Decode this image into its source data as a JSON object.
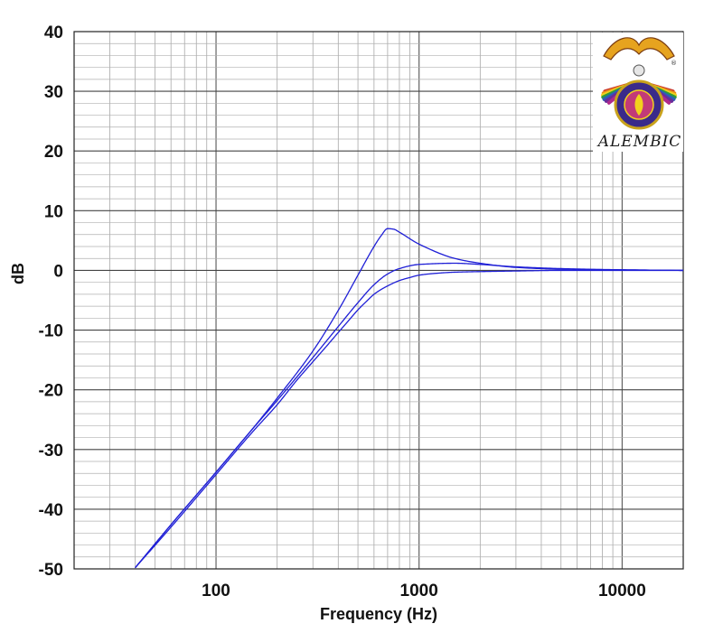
{
  "chart_data": {
    "type": "line",
    "xlabel": "Frequency (Hz)",
    "ylabel": "dB",
    "xscale": "log",
    "xlim": [
      20,
      20000
    ],
    "ylim": [
      -50,
      40
    ],
    "grid": true,
    "line_color": "#1f1fd6",
    "x_ticks": [
      {
        "value": 100,
        "label": "100"
      },
      {
        "value": 1000,
        "label": "1000"
      },
      {
        "value": 10000,
        "label": "10000"
      }
    ],
    "y_ticks": [
      {
        "value": 40,
        "label": "40"
      },
      {
        "value": 30,
        "label": "30"
      },
      {
        "value": 20,
        "label": "20"
      },
      {
        "value": 10,
        "label": "10"
      },
      {
        "value": 0,
        "label": "0"
      },
      {
        "value": -10,
        "label": "-10"
      },
      {
        "value": -20,
        "label": "-20"
      },
      {
        "value": -30,
        "label": "-30"
      },
      {
        "value": -40,
        "label": "-40"
      },
      {
        "value": -50,
        "label": "-50"
      }
    ],
    "series": [
      {
        "x": [
          40,
          60,
          100,
          150,
          200,
          300,
          400,
          500,
          600,
          700,
          800,
          1000,
          1500,
          2000,
          3000,
          5000,
          10000,
          20000
        ],
        "y": [
          -49.8,
          -42.6,
          -33.8,
          -26.7,
          -21.8,
          -14.6,
          -9.4,
          -5.4,
          -2.4,
          -0.6,
          0.3,
          1.0,
          1.2,
          1.0,
          0.6,
          0.3,
          0.1,
          0.0
        ]
      },
      {
        "x": [
          40,
          60,
          100,
          150,
          200,
          300,
          400,
          500,
          600,
          650,
          700,
          750,
          800,
          1000,
          1500,
          2000,
          3000,
          5000,
          10000,
          20000
        ],
        "y": [
          -49.8,
          -42.6,
          -33.8,
          -26.7,
          -21.4,
          -13.5,
          -6.7,
          -0.8,
          4.0,
          5.8,
          7.0,
          6.9,
          6.4,
          4.4,
          2.0,
          1.2,
          0.5,
          0.2,
          0.1,
          0.0
        ]
      },
      {
        "x": [
          40,
          60,
          100,
          150,
          200,
          250,
          300,
          350,
          400,
          450,
          500,
          550,
          600,
          650,
          700,
          750,
          800,
          900,
          1000,
          1200,
          1500,
          2000,
          3000,
          5000,
          10000,
          20000
        ],
        "y": [
          -49.8,
          -43.0,
          -34.2,
          -27.2,
          -22.5,
          -18.4,
          -15.3,
          -12.7,
          -10.4,
          -8.4,
          -6.6,
          -5.2,
          -4.0,
          -3.2,
          -2.6,
          -2.1,
          -1.7,
          -1.2,
          -0.8,
          -0.5,
          -0.3,
          -0.2,
          -0.1,
          0.0,
          0.0,
          0.0
        ]
      }
    ]
  },
  "logo": {
    "text": "ALEMBIC",
    "registered_mark": "®",
    "colors": [
      "#c8342b",
      "#e88d1a",
      "#f2d21c",
      "#2f9a3a",
      "#2c5fb8",
      "#6a2c9a",
      "#b02a8c"
    ]
  }
}
